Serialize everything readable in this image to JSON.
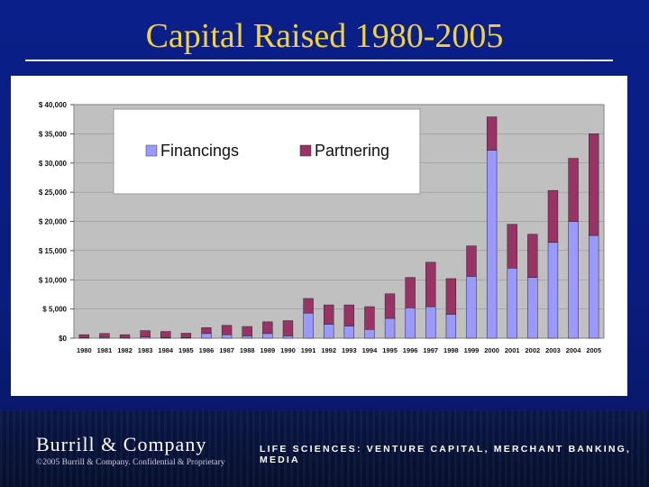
{
  "slide": {
    "title": "Capital Raised 1980-2005"
  },
  "footer": {
    "company": "Burrill & Company",
    "copyright": "©2005 Burrill & Company. Confidential & Proprietary",
    "tagline": "LIFE SCIENCES: VENTURE CAPITAL, MERCHANT BANKING, MEDIA"
  },
  "colors": {
    "background": "#0a1f8a",
    "title": "#f2d23a",
    "plot_area": "#c0c0c0",
    "financings": "#9999ff",
    "partnering": "#993366"
  },
  "chart_data": {
    "type": "bar",
    "stacked": true,
    "categories": [
      "1980",
      "1981",
      "1982",
      "1983",
      "1984",
      "1985",
      "1986",
      "1987",
      "1988",
      "1989",
      "1990",
      "1991",
      "1992",
      "1993",
      "1994",
      "1995",
      "1996",
      "1997",
      "1998",
      "1999",
      "2000",
      "2001",
      "2002",
      "2003",
      "2004",
      "2005"
    ],
    "series": [
      {
        "name": "Financings",
        "color": "#9999ff",
        "values": [
          100,
          150,
          50,
          200,
          100,
          100,
          800,
          600,
          400,
          800,
          400,
          4300,
          2400,
          2100,
          1500,
          3400,
          5200,
          5400,
          4100,
          10600,
          32200,
          12000,
          10400,
          16400,
          20000,
          17600
        ]
      },
      {
        "name": "Partnering",
        "color": "#993366",
        "values": [
          500,
          650,
          550,
          1100,
          1050,
          750,
          1000,
          1600,
          1600,
          2000,
          2600,
          2500,
          3300,
          3600,
          3900,
          4200,
          5200,
          7600,
          6100,
          5200,
          5700,
          7500,
          7400,
          8900,
          10800,
          17400
        ]
      }
    ],
    "y_tick_labels": [
      "$0",
      "$ 5,000",
      "$ 10,000",
      "$ 15,000",
      "$ 20,000",
      "$ 25,000",
      "$ 30,000",
      "$ 35,000",
      "$ 40,000"
    ],
    "ylim": [
      0,
      40000
    ],
    "grid": true,
    "legend_position": "top-left"
  }
}
